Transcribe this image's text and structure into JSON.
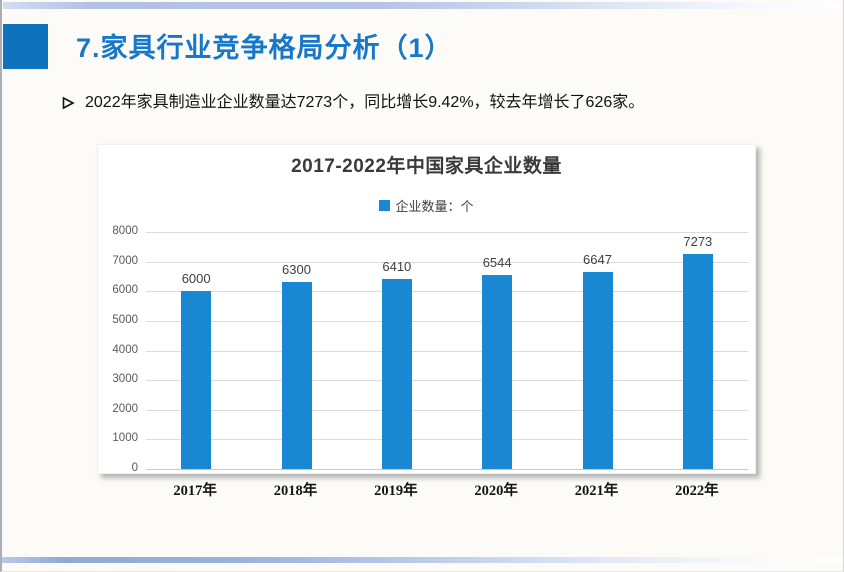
{
  "slide": {
    "title": "7.家具行业竞争格局分析（1）",
    "bullet": {
      "marker": "➢",
      "text": "2022年家具制造业企业数量达7273个，同比增长9.42%，较去年增长了626家。"
    }
  },
  "colors": {
    "accent_square": "#0E72BC",
    "title_text": "#1777C9",
    "bar_fill": "#1987D2",
    "grid_line": "#DCDCDC",
    "axis_text": "#595959",
    "top_strip_blue": "#B2C2E3",
    "bottom_strip_blue": "#90AAD7"
  },
  "chart_data": {
    "type": "bar",
    "title": "2017-2022年中国家具企业数量",
    "legend": [
      "企业数量：个"
    ],
    "legend_position": "top",
    "categories": [
      "2017年",
      "2018年",
      "2019年",
      "2020年",
      "2021年",
      "2022年"
    ],
    "values": [
      6000,
      6300,
      6410,
      6544,
      6647,
      7273
    ],
    "xlabel": "",
    "ylabel": "",
    "ylim": [
      0,
      8000
    ],
    "ytick_step": 1000,
    "grid": true,
    "bar_color": "#1987D2",
    "show_data_labels": true
  }
}
